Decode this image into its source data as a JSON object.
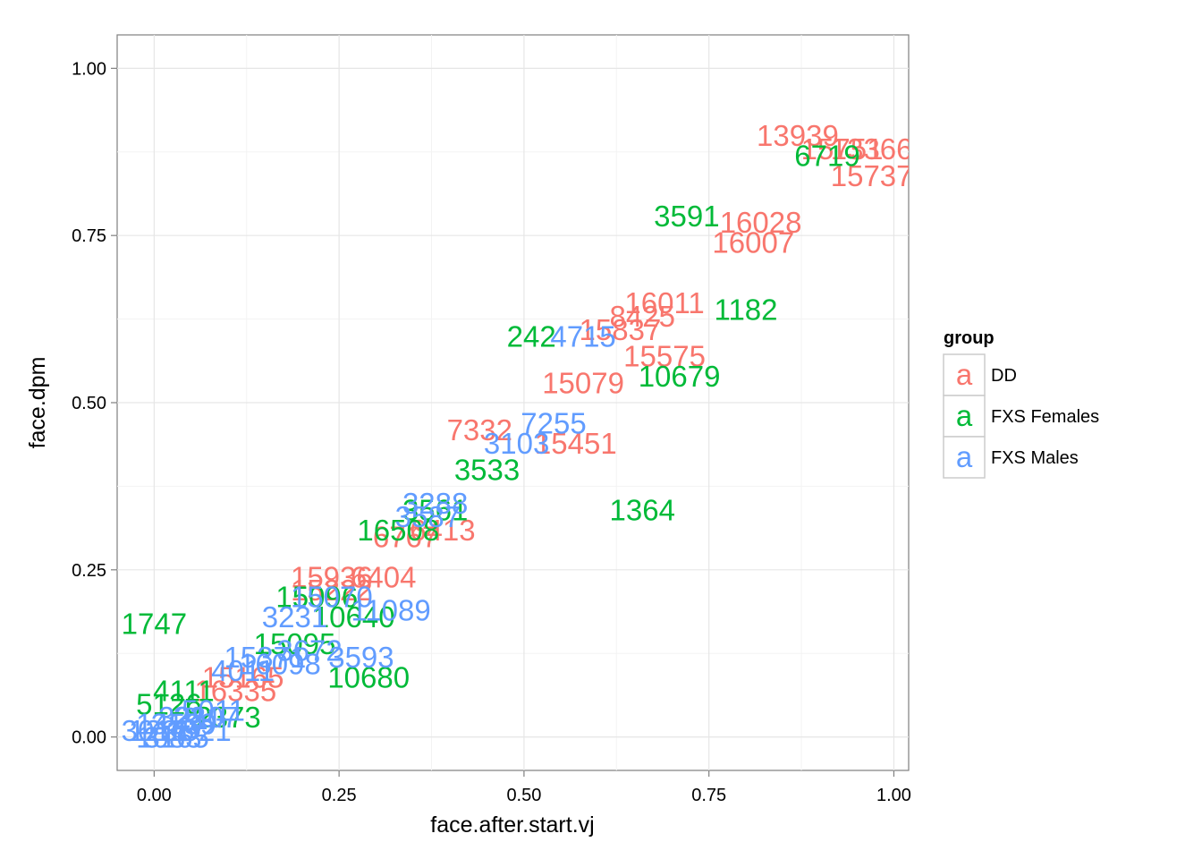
{
  "chart_data": {
    "type": "scatter",
    "mark": "text",
    "xlabel": "face.after.start.vj",
    "ylabel": "face.dpm",
    "xlim": [
      -0.05,
      1.02
    ],
    "ylim": [
      -0.05,
      1.05
    ],
    "x_ticks": [
      "0.00",
      "0.25",
      "0.50",
      "0.75",
      "1.00"
    ],
    "y_ticks": [
      "0.00",
      "0.25",
      "0.50",
      "0.75",
      "1.00"
    ],
    "grid": true,
    "legend": {
      "title": "group",
      "position": "right",
      "key_glyph": "a",
      "entries": [
        {
          "name": "DD",
          "color": "#F8766D"
        },
        {
          "name": "FXS Females",
          "color": "#00BA38"
        },
        {
          "name": "FXS Males",
          "color": "#619CFF"
        }
      ]
    },
    "series": [
      {
        "name": "DD",
        "color": "#F8766D",
        "points": [
          {
            "label": "13939",
            "x": 0.87,
            "y": 0.9
          },
          {
            "label": "15751",
            "x": 0.93,
            "y": 0.88
          },
          {
            "label": "13366",
            "x": 0.97,
            "y": 0.88
          },
          {
            "label": "15737",
            "x": 0.97,
            "y": 0.84
          },
          {
            "label": "16028",
            "x": 0.82,
            "y": 0.77
          },
          {
            "label": "16007",
            "x": 0.81,
            "y": 0.74
          },
          {
            "label": "16011",
            "x": 0.69,
            "y": 0.65
          },
          {
            "label": "8425",
            "x": 0.66,
            "y": 0.63
          },
          {
            "label": "15837",
            "x": 0.63,
            "y": 0.61
          },
          {
            "label": "15575",
            "x": 0.69,
            "y": 0.57
          },
          {
            "label": "15079",
            "x": 0.58,
            "y": 0.53
          },
          {
            "label": "7332",
            "x": 0.44,
            "y": 0.46
          },
          {
            "label": "15451",
            "x": 0.57,
            "y": 0.44
          },
          {
            "label": "6413",
            "x": 0.39,
            "y": 0.31
          },
          {
            "label": "6767",
            "x": 0.34,
            "y": 0.3
          },
          {
            "label": "15936",
            "x": 0.24,
            "y": 0.24
          },
          {
            "label": "6404",
            "x": 0.31,
            "y": 0.24
          },
          {
            "label": "15222",
            "x": 0.24,
            "y": 0.22
          },
          {
            "label": "15165",
            "x": 0.12,
            "y": 0.09
          },
          {
            "label": "16335",
            "x": 0.11,
            "y": 0.07
          }
        ]
      },
      {
        "name": "FXS Females",
        "color": "#00BA38",
        "points": [
          {
            "label": "6719",
            "x": 0.91,
            "y": 0.87
          },
          {
            "label": "3591",
            "x": 0.72,
            "y": 0.78
          },
          {
            "label": "1182",
            "x": 0.8,
            "y": 0.64
          },
          {
            "label": "242",
            "x": 0.51,
            "y": 0.6
          },
          {
            "label": "10679",
            "x": 0.71,
            "y": 0.54
          },
          {
            "label": "3533",
            "x": 0.45,
            "y": 0.4
          },
          {
            "label": "1364",
            "x": 0.66,
            "y": 0.34
          },
          {
            "label": "3561",
            "x": 0.38,
            "y": 0.34
          },
          {
            "label": "16508",
            "x": 0.33,
            "y": 0.31
          },
          {
            "label": "1747",
            "x": 0.0,
            "y": 0.17
          },
          {
            "label": "10640",
            "x": 0.27,
            "y": 0.18
          },
          {
            "label": "15096",
            "x": 0.22,
            "y": 0.21
          },
          {
            "label": "15095",
            "x": 0.19,
            "y": 0.14
          },
          {
            "label": "10680",
            "x": 0.29,
            "y": 0.09
          },
          {
            "label": "4111",
            "x": 0.04,
            "y": 0.07
          },
          {
            "label": "5126",
            "x": 0.02,
            "y": 0.05
          },
          {
            "label": "2373",
            "x": 0.1,
            "y": 0.03
          }
        ]
      },
      {
        "name": "FXS Males",
        "color": "#619CFF",
        "points": [
          {
            "label": "4715",
            "x": 0.58,
            "y": 0.6
          },
          {
            "label": "7255",
            "x": 0.54,
            "y": 0.47
          },
          {
            "label": "3103",
            "x": 0.49,
            "y": 0.44
          },
          {
            "label": "3288",
            "x": 0.38,
            "y": 0.35
          },
          {
            "label": "3587",
            "x": 0.37,
            "y": 0.33
          },
          {
            "label": "15070",
            "x": 0.24,
            "y": 0.21
          },
          {
            "label": "3231",
            "x": 0.19,
            "y": 0.18
          },
          {
            "label": "11089",
            "x": 0.32,
            "y": 0.19
          },
          {
            "label": "3593",
            "x": 0.28,
            "y": 0.12
          },
          {
            "label": "15371",
            "x": 0.15,
            "y": 0.12
          },
          {
            "label": "16098",
            "x": 0.17,
            "y": 0.11
          },
          {
            "label": "4011",
            "x": 0.12,
            "y": 0.1
          },
          {
            "label": "3672",
            "x": 0.21,
            "y": 0.13
          },
          {
            "label": "1453",
            "x": 0.02,
            "y": 0.02
          },
          {
            "label": "3210",
            "x": 0.05,
            "y": 0.03
          },
          {
            "label": "5011",
            "x": 0.08,
            "y": 0.04
          },
          {
            "label": "1235",
            "x": 0.01,
            "y": 0.01
          },
          {
            "label": "3165",
            "x": 0.03,
            "y": 0.0
          },
          {
            "label": "1521",
            "x": 0.06,
            "y": 0.01
          },
          {
            "label": "3139",
            "x": 0.04,
            "y": 0.02
          },
          {
            "label": "2217",
            "x": 0.07,
            "y": 0.03
          },
          {
            "label": "1083",
            "x": 0.02,
            "y": 0.0
          },
          {
            "label": "3016",
            "x": 0.0,
            "y": 0.01
          }
        ]
      }
    ]
  }
}
